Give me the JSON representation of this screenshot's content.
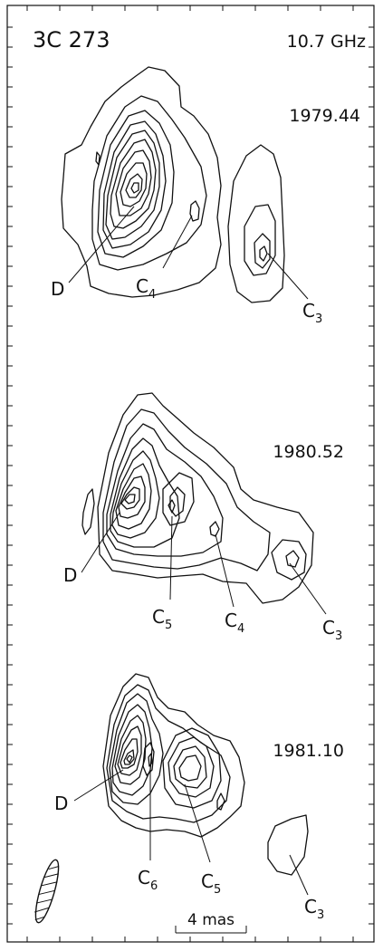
{
  "source": "3C 273",
  "frequency": "10.7 GHz",
  "epochs": [
    {
      "date": "1979.44",
      "labels": [
        {
          "name": "D",
          "sub": ""
        },
        {
          "name": "C",
          "sub": "4"
        },
        {
          "name": "C",
          "sub": "3"
        }
      ]
    },
    {
      "date": "1980.52",
      "labels": [
        {
          "name": "D",
          "sub": ""
        },
        {
          "name": "C",
          "sub": "5"
        },
        {
          "name": "C",
          "sub": "4"
        },
        {
          "name": "C",
          "sub": "3"
        }
      ]
    },
    {
      "date": "1981.10",
      "labels": [
        {
          "name": "D",
          "sub": ""
        },
        {
          "name": "C",
          "sub": "6"
        },
        {
          "name": "C",
          "sub": "5"
        },
        {
          "name": "C",
          "sub": "3"
        }
      ]
    }
  ],
  "scale_bar": "4 mas"
}
